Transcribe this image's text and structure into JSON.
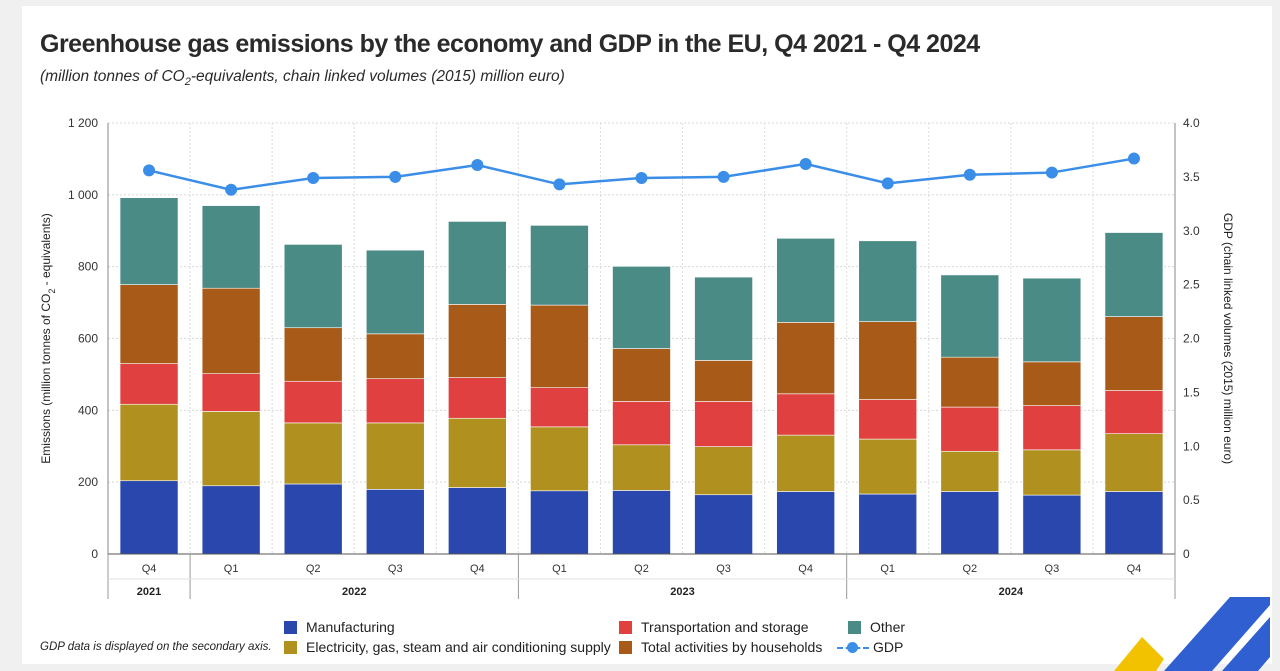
{
  "chart_data": {
    "type": "bar",
    "stacked": true,
    "title": "Greenhouse gas emissions by the economy and GDP in the EU, Q4 2021 - Q4 2024",
    "subtitle": {
      "prefix": "(million tonnes of CO",
      "sub": "2",
      "suffix": "-equivalents, chain linked volumes (2015) million euro)"
    },
    "categories": [
      "Q4",
      "Q1",
      "Q2",
      "Q3",
      "Q4",
      "Q1",
      "Q2",
      "Q3",
      "Q4",
      "Q1",
      "Q2",
      "Q3",
      "Q4"
    ],
    "years": [
      {
        "label": "2021",
        "start": 0,
        "end": 0
      },
      {
        "label": "2022",
        "start": 1,
        "end": 4
      },
      {
        "label": "2023",
        "start": 5,
        "end": 8
      },
      {
        "label": "2024",
        "start": 9,
        "end": 12
      }
    ],
    "series": [
      {
        "name": "Manufacturing",
        "color": "#2a47ad",
        "values": [
          204,
          190,
          195,
          180,
          185,
          176,
          177,
          165,
          174,
          167,
          174,
          164,
          174
        ]
      },
      {
        "name": "Electricity, gas, steam and air conditioning supply",
        "color": "#b0901e",
        "values": [
          213,
          207,
          170,
          185,
          193,
          178,
          127,
          134,
          157,
          153,
          112,
          126,
          161
        ]
      },
      {
        "name": "Transportation and storage",
        "color": "#e04040",
        "values": [
          113,
          105,
          116,
          123,
          113,
          109,
          121,
          126,
          115,
          110,
          123,
          123,
          120
        ]
      },
      {
        "name": "Total activities by households",
        "color": "#a85b18",
        "values": [
          220,
          238,
          149,
          125,
          204,
          230,
          147,
          114,
          199,
          217,
          139,
          122,
          206
        ]
      },
      {
        "name": "Other",
        "color": "#4b8b85",
        "values": [
          242,
          230,
          232,
          233,
          231,
          222,
          229,
          232,
          234,
          225,
          229,
          233,
          234
        ]
      }
    ],
    "line": {
      "name": "GDP",
      "color": "#3b8ee8",
      "values": [
        3.56,
        3.38,
        3.49,
        3.5,
        3.61,
        3.43,
        3.49,
        3.5,
        3.62,
        3.44,
        3.52,
        3.54,
        3.67
      ]
    },
    "yaxis_left": {
      "label_prefix": "Emissions (million tonnes of CO",
      "label_sub": "2",
      "label_suffix": " - equivalents)",
      "ylim": [
        0,
        1200
      ],
      "ticks": [
        0,
        200,
        400,
        600,
        800,
        1000,
        1200
      ],
      "tick_labels": [
        "0",
        "200",
        "400",
        "600",
        "800",
        "1 000",
        "1 200"
      ]
    },
    "yaxis_right": {
      "label": "GDP (chain linked volumes (2015) million euro)",
      "ylim": [
        0,
        4.0
      ],
      "ticks": [
        0,
        0.5,
        1.0,
        1.5,
        2.0,
        2.5,
        3.0,
        3.5,
        4.0
      ],
      "tick_labels": [
        "0",
        "0.5",
        "1.0",
        "1.5",
        "2.0",
        "2.5",
        "3.0",
        "3.5",
        "4.0"
      ]
    },
    "legend_position": "bottom",
    "grid": true
  },
  "legend": {
    "manufacturing": "Manufacturing",
    "electricity": "Electricity, gas, steam and air conditioning supply",
    "transport": "Transportation and storage",
    "households": "Total activities by households",
    "other": "Other",
    "gdp": "GDP"
  },
  "footnote": "GDP data is displayed on the secondary axis.",
  "colors": {
    "manufacturing": "#2a47ad",
    "electricity": "#b0901e",
    "transport": "#e04040",
    "households": "#a85b18",
    "other": "#4b8b85",
    "gdp": "#3b8ee8",
    "logo_blue": "#2f5fd0",
    "logo_yellow": "#f2c200"
  }
}
